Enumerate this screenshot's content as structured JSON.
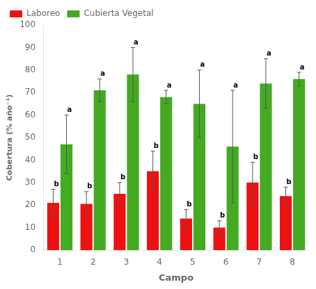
{
  "chart_data": {
    "type": "bar",
    "categories": [
      "1",
      "2",
      "3",
      "4",
      "5",
      "6",
      "7",
      "8"
    ],
    "series": [
      {
        "name": "Laboreo",
        "color": "#ee1111",
        "values": [
          21,
          20.5,
          25,
          35,
          14,
          10,
          30,
          24
        ],
        "errors": [
          6,
          5.5,
          5,
          9,
          4,
          3,
          9,
          4
        ],
        "letters": [
          "b",
          "b",
          "b",
          "b",
          "b",
          "b",
          "b",
          "b"
        ]
      },
      {
        "name": "Cubierta Vegetal",
        "color": "#44aa22",
        "values": [
          47,
          71,
          78,
          68,
          65,
          46,
          74,
          76
        ],
        "errors": [
          13,
          5,
          12,
          3,
          15,
          25,
          11,
          3
        ],
        "letters": [
          "a",
          "a",
          "a",
          "a",
          "a",
          "a",
          "a",
          "a"
        ]
      }
    ],
    "xlabel": "Campo",
    "ylabel": "Cobertura (% año⁻¹)",
    "ylim": [
      0,
      100
    ],
    "yticks": [
      0,
      10,
      20,
      30,
      40,
      50,
      60,
      70,
      80,
      90,
      100
    ],
    "grid": false,
    "legend": "upper left"
  }
}
